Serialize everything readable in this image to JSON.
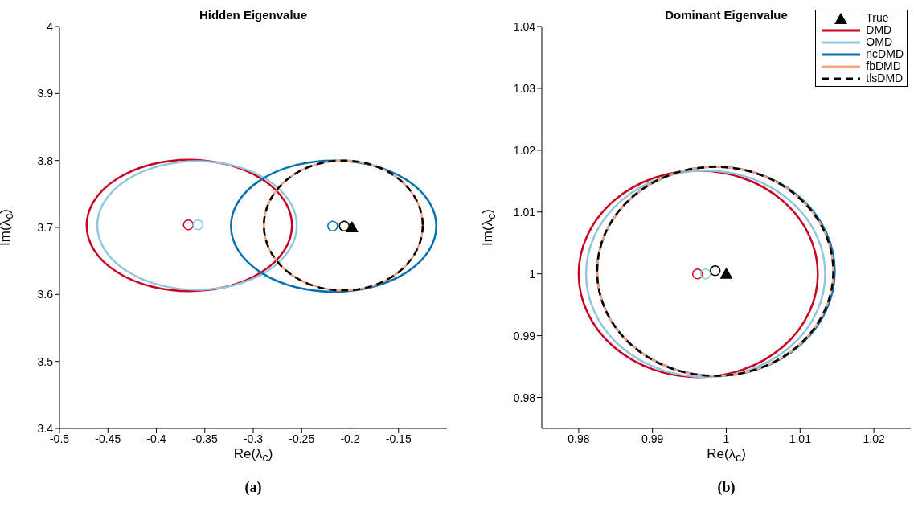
{
  "chart_data": [
    {
      "type": "line",
      "title": "Hidden Eigenvalue",
      "xlabel": "Re(λ$_{c}$)",
      "ylabel": "Im(λ$_{c}$)",
      "xlim": [
        -0.5,
        -0.1
      ],
      "xticks": [
        -0.5,
        -0.45,
        -0.4,
        -0.35,
        -0.3,
        -0.25,
        -0.2,
        -0.15
      ],
      "ylim": [
        3.4,
        4
      ],
      "yticks": [
        3.4,
        3.5,
        3.6,
        3.7,
        3.8,
        3.9,
        4
      ],
      "annotations": [
        "(a)"
      ],
      "series": [
        {
          "type": "scatter",
          "color": "#ca0020",
          "marker": "circle",
          "line_style": "solid",
          "x": [
            -0.367
          ],
          "values": [
            3.704
          ]
        },
        {
          "type": "scatter",
          "color": "#92c5de",
          "marker": "circle",
          "line_style": "solid",
          "x": [
            -0.357
          ],
          "values": [
            3.704
          ]
        },
        {
          "type": "scatter",
          "color": "#0571b0",
          "marker": "circle",
          "line_style": "solid",
          "x": [
            -0.218
          ],
          "values": [
            3.702
          ]
        },
        {
          "type": "scatter",
          "color": "#f4a582",
          "marker": "circle",
          "line_style": "solid",
          "x": [
            -0.206
          ],
          "values": [
            3.702
          ]
        },
        {
          "type": "scatter",
          "color": "#000000",
          "marker": "circle",
          "line_style": "dashed",
          "x": [
            -0.206
          ],
          "values": [
            3.702
          ]
        },
        {
          "type": "scatter",
          "color": "#000000",
          "marker": "triangle",
          "x": [
            -0.198
          ],
          "values": [
            3.7
          ]
        }
      ]
    },
    {
      "type": "line",
      "title": "Dominant Eigenvalue",
      "xlabel": "Re(λ$_{c}$)",
      "ylabel": "Im(λ$_{c}$)",
      "xlim": [
        0.975,
        1.025
      ],
      "xticks": [
        0.98,
        0.99,
        1,
        1.01,
        1.02
      ],
      "ylim": [
        0.975,
        1.04
      ],
      "yticks": [
        0.98,
        0.99,
        1,
        1.01,
        1.02,
        1.03,
        1.04
      ],
      "legend": "top right",
      "annotations": [
        "(b)"
      ],
      "series": [
        {
          "type": "scatter",
          "name": "True",
          "color": "#000000",
          "marker": "triangle",
          "x": [
            1.0
          ],
          "values": [
            1.0
          ]
        },
        {
          "type": "scatter",
          "name": "DMD",
          "color": "#ca0020",
          "marker": "circle",
          "line_style": "solid",
          "x": [
            0.9961
          ],
          "values": [
            1.0
          ]
        },
        {
          "type": "scatter",
          "name": "OMD",
          "color": "#92c5de",
          "marker": "circle",
          "line_style": "solid",
          "x": [
            0.9972
          ],
          "values": [
            1.0
          ]
        },
        {
          "type": "scatter",
          "name": "ncDMD",
          "color": "#0571b0",
          "marker": "circle",
          "line_style": "solid",
          "x": [
            null
          ],
          "values": [
            null
          ]
        },
        {
          "type": "scatter",
          "name": "fbDMD",
          "color": "#f4a582",
          "marker": "circle",
          "line_style": "solid",
          "x": [
            null
          ],
          "values": [
            null
          ]
        },
        {
          "type": "scatter",
          "name": "tlsDMD",
          "color": "#000000",
          "marker": "circle",
          "line_style": "dashed",
          "x": [
            0.9985
          ],
          "values": [
            1.0005
          ]
        }
      ]
    }
  ]
}
